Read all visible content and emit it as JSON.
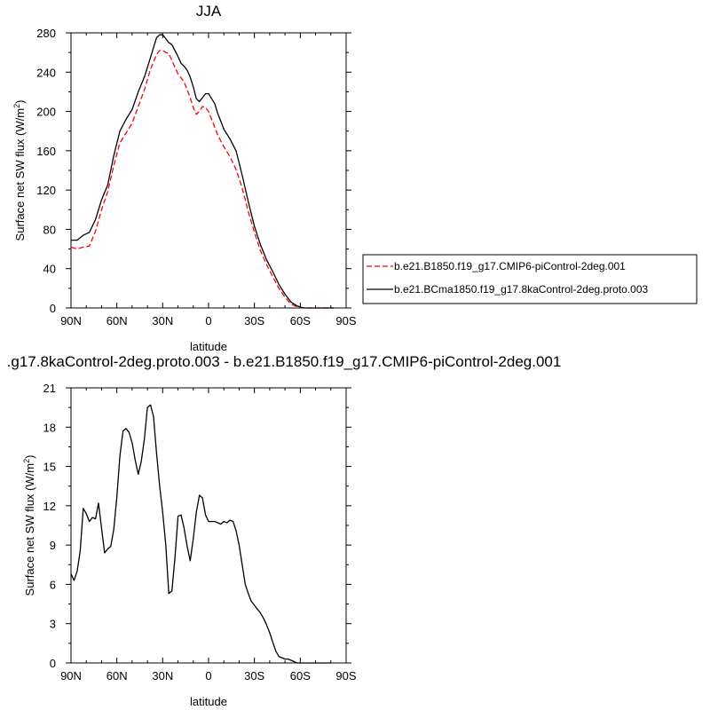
{
  "chart_data": [
    {
      "type": "line",
      "title": "JJA",
      "xlabel": "latitude",
      "ylabel_main": "Surface net SW flux (W/m",
      "ylabel_sup": "2",
      "ylabel_end": ")",
      "xlim": [
        90,
        -90
      ],
      "ylim": [
        0,
        280
      ],
      "xticks": [
        90,
        60,
        30,
        0,
        -30,
        -60,
        -90
      ],
      "xticklabels": [
        "90N",
        "60N",
        "30N",
        "0",
        "30S",
        "60S",
        "90S"
      ],
      "yticks": [
        0,
        40,
        80,
        120,
        160,
        200,
        240,
        280
      ],
      "yticklabels": [
        "0",
        "40",
        "80",
        "120",
        "160",
        "200",
        "240",
        "280"
      ],
      "legend_position": "right-outside",
      "series": [
        {
          "name": "b.e21.B1850.f19_g17.CMIP6-piControl-2deg.001",
          "color": "#ff0000",
          "dash": "dashed",
          "x": [
            90,
            86,
            82,
            78,
            74,
            70,
            66,
            62,
            58,
            54,
            50,
            46,
            42,
            38,
            34,
            32,
            30,
            28,
            26,
            24,
            22,
            20,
            18,
            16,
            14,
            12,
            10,
            8,
            6,
            4,
            2,
            0,
            -2,
            -4,
            -6,
            -8,
            -10,
            -14,
            -18,
            -22,
            -26,
            -30,
            -34,
            -38,
            -42,
            -46,
            -50,
            -54,
            -58,
            -62,
            -66,
            -70,
            -74,
            -78,
            -82
          ],
          "y": [
            62,
            60,
            62,
            63,
            78,
            100,
            118,
            145,
            168,
            178,
            188,
            205,
            222,
            243,
            258,
            262,
            262,
            260,
            259,
            252,
            245,
            238,
            234,
            230,
            222,
            214,
            204,
            197,
            200,
            205,
            204,
            200,
            192,
            184,
            176,
            170,
            164,
            154,
            141,
            122,
            98,
            77,
            58,
            44,
            32,
            20,
            11,
            4,
            1,
            0,
            0,
            0,
            0,
            0,
            0
          ]
        },
        {
          "name": "b.e21.BCma1850.f19_g17.8kaControl-2deg.proto.003",
          "color": "#000000",
          "dash": "solid",
          "x": [
            90,
            86,
            82,
            78,
            74,
            70,
            66,
            62,
            58,
            54,
            50,
            46,
            42,
            38,
            34,
            32,
            30,
            28,
            26,
            24,
            22,
            20,
            18,
            16,
            14,
            12,
            10,
            8,
            6,
            4,
            2,
            0,
            -2,
            -4,
            -6,
            -8,
            -10,
            -14,
            -18,
            -22,
            -26,
            -30,
            -34,
            -38,
            -42,
            -46,
            -50,
            -54,
            -58,
            -62,
            -66,
            -70,
            -74,
            -78,
            -82
          ],
          "y": [
            69,
            69,
            74,
            77,
            90,
            110,
            125,
            155,
            180,
            192,
            202,
            220,
            235,
            255,
            275,
            278,
            278,
            274,
            270,
            268,
            262,
            256,
            249,
            246,
            242,
            235,
            225,
            213,
            210,
            214,
            218,
            218,
            213,
            208,
            198,
            190,
            182,
            172,
            160,
            135,
            108,
            83,
            64,
            49,
            37,
            24,
            14,
            6,
            2,
            0,
            0,
            0,
            0,
            0,
            0
          ]
        }
      ]
    },
    {
      "type": "line",
      "title": ".g17.8kaControl-2deg.proto.003 - b.e21.B1850.f19_g17.CMIP6-piControl-2deg.001",
      "xlabel": "latitude",
      "ylabel_main": "Surface net SW flux (W/m",
      "ylabel_sup": "2",
      "ylabel_end": ")",
      "xlim": [
        90,
        -90
      ],
      "ylim": [
        0,
        21
      ],
      "xticks": [
        90,
        60,
        30,
        0,
        -30,
        -60,
        -90
      ],
      "xticklabels": [
        "90N",
        "60N",
        "30N",
        "0",
        "30S",
        "60S",
        "90S"
      ],
      "yticks": [
        0,
        3,
        6,
        9,
        12,
        15,
        18,
        21
      ],
      "yticklabels": [
        "0",
        "3",
        "6",
        "9",
        "12",
        "15",
        "18",
        "21"
      ],
      "series": [
        {
          "color": "#000000",
          "dash": "solid",
          "x": [
            90,
            88,
            86,
            84,
            82,
            80,
            78,
            76,
            74,
            72,
            70,
            68,
            66,
            64,
            62,
            60,
            58,
            56,
            54,
            52,
            50,
            48,
            46,
            44,
            42,
            40,
            38,
            36,
            34,
            32,
            30,
            28,
            26,
            24,
            22,
            20,
            18,
            16,
            14,
            12,
            10,
            8,
            6,
            4,
            2,
            0,
            -2,
            -4,
            -6,
            -8,
            -10,
            -12,
            -14,
            -16,
            -18,
            -20,
            -22,
            -24,
            -26,
            -28,
            -30,
            -32,
            -34,
            -36,
            -38,
            -40,
            -42,
            -44,
            -46,
            -48,
            -50,
            -52,
            -54,
            -56,
            -58,
            -60,
            -62,
            -64,
            -66,
            -68,
            -70,
            -72,
            -74,
            -76,
            -78,
            -80
          ],
          "y": [
            6.8,
            6.3,
            7.0,
            8.5,
            11.8,
            11.4,
            10.8,
            11.1,
            11.0,
            12.2,
            10.3,
            8.4,
            8.7,
            8.9,
            10.2,
            12.7,
            15.8,
            17.7,
            17.9,
            17.6,
            16.8,
            15.5,
            14.4,
            15.4,
            17.1,
            19.5,
            19.7,
            18.8,
            16.0,
            13.5,
            11.5,
            9.0,
            5.3,
            5.5,
            8.0,
            11.2,
            11.3,
            10.3,
            8.9,
            7.8,
            9.5,
            11.5,
            12.8,
            12.6,
            11.3,
            10.8,
            10.8,
            10.8,
            10.7,
            10.6,
            10.8,
            10.7,
            10.9,
            10.8,
            10.1,
            9.0,
            7.5,
            6.0,
            5.3,
            4.7,
            4.4,
            4.1,
            3.8,
            3.4,
            2.9,
            2.3,
            1.6,
            0.9,
            0.5,
            0.4,
            0.3,
            0.3,
            0.2,
            0.1,
            0.0,
            0.0,
            0.0,
            0.0,
            0.0,
            0.0,
            0.0,
            0.0,
            0.0,
            0.0,
            0.0,
            0.0
          ]
        }
      ]
    }
  ]
}
